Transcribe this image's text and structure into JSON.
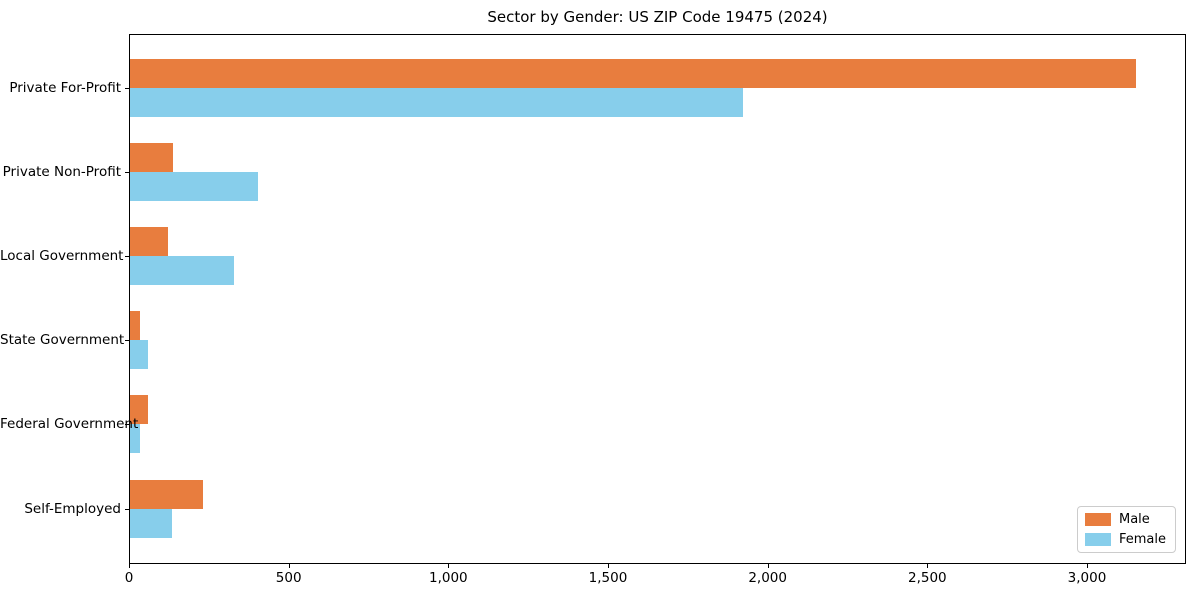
{
  "title": "Sector by Gender: US ZIP Code 19475 (2024)",
  "chart_data": {
    "type": "bar",
    "orientation": "horizontal",
    "title": "Sector by Gender: US ZIP Code 19475 (2024)",
    "xlabel": "",
    "ylabel": "",
    "categories": [
      "Private For-Profit",
      "Private Non-Profit",
      "Local Government",
      "State Government",
      "Federal Government",
      "Self-Employed"
    ],
    "series": [
      {
        "name": "Male",
        "color": "#e87d3e",
        "values": [
          3150,
          135,
          120,
          30,
          55,
          230
        ]
      },
      {
        "name": "Female",
        "color": "#87ceeb",
        "values": [
          1920,
          400,
          325,
          55,
          30,
          130
        ]
      }
    ],
    "xlim": [
      0,
      3310
    ],
    "xticks": [
      0,
      500,
      1000,
      1500,
      2000,
      2500,
      3000
    ],
    "xtick_labels": [
      "0",
      "500",
      "1,000",
      "1,500",
      "2,000",
      "2,500",
      "3,000"
    ],
    "grid": false,
    "legend": {
      "position": "lower right",
      "entries": [
        "Male",
        "Female"
      ]
    }
  },
  "colors": {
    "male": "#e87d3e",
    "female": "#87ceeb",
    "axis": "#000000",
    "legend_border": "#cccccc",
    "background": "#ffffff"
  }
}
